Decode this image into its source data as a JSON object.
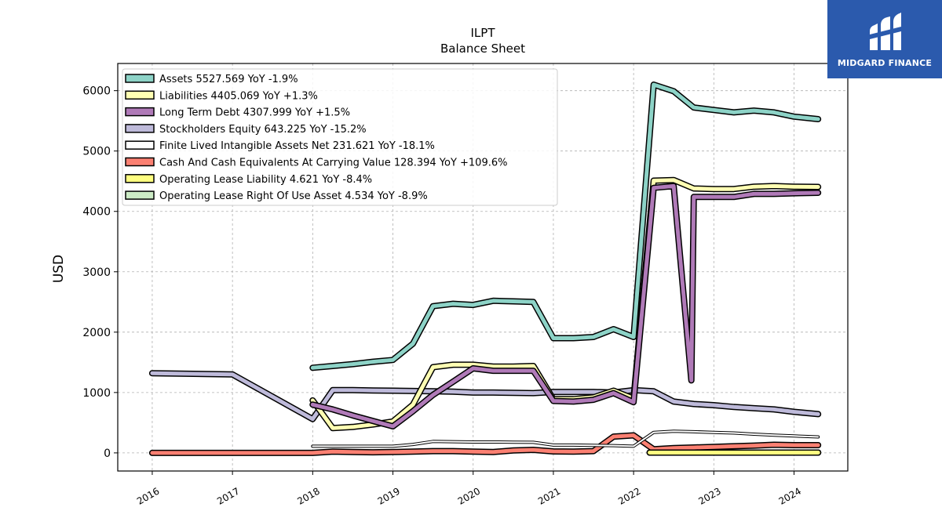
{
  "brand": {
    "name": "MIDGARD FINANCE"
  },
  "chart_data": {
    "type": "line",
    "title": "ILPT",
    "subtitle": "Balance  Sheet",
    "xlabel": "",
    "ylabel": "USD",
    "ylim": [
      -300,
      6450
    ],
    "xlim": [
      2015.57,
      2024.67
    ],
    "x_ticks": [
      2016,
      2017,
      2018,
      2019,
      2020,
      2021,
      2022,
      2023,
      2024
    ],
    "x_tick_labels": [
      "2016",
      "2017",
      "2018",
      "2019",
      "2020",
      "2021",
      "2022",
      "2023",
      "2024"
    ],
    "y_ticks": [
      0,
      1000,
      2000,
      3000,
      4000,
      5000,
      6000
    ],
    "y_tick_labels": [
      "0",
      "1000",
      "2000",
      "3000",
      "4000",
      "5000",
      "6000"
    ],
    "grid": true,
    "legend_position": "top-left",
    "series": [
      {
        "name": "Assets",
        "legend": "Assets  5527.569 YoY -1.9%",
        "color": "#8dd3c7",
        "x": [
          2018.0,
          2018.25,
          2018.5,
          2018.75,
          2019.0,
          2019.25,
          2019.5,
          2019.75,
          2020.0,
          2020.25,
          2020.5,
          2020.75,
          2021.0,
          2021.25,
          2021.5,
          2021.75,
          2022.0,
          2022.25,
          2022.5,
          2022.75,
          2023.0,
          2023.25,
          2023.5,
          2023.75,
          2024.0,
          2024.3
        ],
        "y": [
          1410,
          1440,
          1470,
          1510,
          1540,
          1810,
          2430,
          2470,
          2450,
          2520,
          2510,
          2500,
          1900,
          1900,
          1920,
          2050,
          1920,
          6100,
          5990,
          5720,
          5680,
          5640,
          5670,
          5640,
          5570,
          5528
        ]
      },
      {
        "name": "Liabilities",
        "legend": "Liabilities  4405.069 YoY +1.3%",
        "color": "#ffffb3",
        "x": [
          2018.0,
          2018.25,
          2018.5,
          2018.75,
          2019.0,
          2019.25,
          2019.5,
          2019.75,
          2020.0,
          2020.25,
          2020.5,
          2020.75,
          2021.0,
          2021.25,
          2021.5,
          2021.75,
          2022.0,
          2022.25,
          2022.5,
          2022.75,
          2023.0,
          2023.25,
          2023.5,
          2023.75,
          2024.0,
          2024.3
        ],
        "y": [
          870,
          410,
          430,
          470,
          520,
          800,
          1420,
          1460,
          1460,
          1430,
          1430,
          1440,
          890,
          890,
          920,
          1030,
          900,
          4510,
          4520,
          4380,
          4370,
          4370,
          4410,
          4420,
          4410,
          4405
        ]
      },
      {
        "name": "Long Term Debt",
        "legend": "Long Term Debt  4307.999 YoY +1.5%",
        "color": "#bebada",
        "stroke_override": "#b07ab8",
        "x": [
          2018.0,
          2018.25,
          2018.5,
          2018.75,
          2019.0,
          2019.25,
          2019.5,
          2019.75,
          2020.0,
          2020.25,
          2020.5,
          2020.75,
          2021.0,
          2021.25,
          2021.5,
          2021.75,
          2022.0,
          2022.25,
          2022.5,
          2022.72,
          2022.75,
          2023.0,
          2023.25,
          2023.5,
          2023.75,
          2024.0,
          2024.3
        ],
        "y": [
          800,
          720,
          620,
          530,
          440,
          690,
          960,
          1180,
          1400,
          1360,
          1360,
          1360,
          860,
          850,
          880,
          990,
          840,
          4390,
          4420,
          1200,
          4240,
          4240,
          4240,
          4290,
          4290,
          4300,
          4308
        ]
      },
      {
        "name": "Stockholders Equity",
        "legend": "Stockholders Equity  643.225 YoY -15.2%",
        "color": "#bebada",
        "x": [
          2016.0,
          2017.0,
          2018.0,
          2018.25,
          2018.5,
          2018.75,
          2019.0,
          2019.25,
          2019.5,
          2019.75,
          2020.0,
          2020.25,
          2020.5,
          2020.75,
          2021.0,
          2021.25,
          2021.5,
          2021.75,
          2022.0,
          2022.25,
          2022.5,
          2022.75,
          2023.0,
          2023.25,
          2023.5,
          2023.75,
          2024.0,
          2024.3
        ],
        "y": [
          1320,
          1300,
          560,
          1040,
          1040,
          1035,
          1030,
          1025,
          1020,
          1015,
          1000,
          1000,
          995,
          990,
          1010,
          1010,
          1010,
          1000,
          1040,
          1020,
          850,
          810,
          790,
          760,
          740,
          720,
          680,
          643
        ]
      },
      {
        "name": "Finite Lived Intangible Assets Net",
        "legend": "Finite Lived Intangible Assets Net  231.621 YoY -18.1%",
        "color": "#ffffff",
        "x": [
          2018.0,
          2018.25,
          2018.5,
          2018.75,
          2019.0,
          2019.25,
          2019.5,
          2019.75,
          2020.0,
          2020.25,
          2020.5,
          2020.75,
          2021.0,
          2021.25,
          2021.5,
          2021.75,
          2022.0,
          2022.25,
          2022.5,
          2022.75,
          2023.0,
          2023.25,
          2023.5,
          2023.75,
          2024.0,
          2024.3
        ],
        "y": [
          110,
          110,
          110,
          110,
          110,
          140,
          190,
          185,
          180,
          180,
          178,
          175,
          130,
          130,
          125,
          120,
          110,
          340,
          360,
          350,
          340,
          330,
          310,
          295,
          280,
          265
        ]
      },
      {
        "name": "Cash And Cash Equivalents At Carrying Value",
        "legend": "Cash And Cash Equivalents At Carrying Value  128.394 YoY +109.6%",
        "color": "#fb8072",
        "x": [
          2016.0,
          2017.0,
          2018.0,
          2018.25,
          2018.5,
          2018.75,
          2019.0,
          2019.25,
          2019.5,
          2019.75,
          2020.0,
          2020.25,
          2020.5,
          2020.75,
          2021.0,
          2021.25,
          2021.5,
          2021.75,
          2022.0,
          2022.25,
          2022.5,
          2022.75,
          2023.0,
          2023.25,
          2023.5,
          2023.75,
          2024.0,
          2024.3
        ],
        "y": [
          0,
          0,
          0,
          20,
          15,
          10,
          15,
          20,
          30,
          30,
          20,
          15,
          40,
          50,
          25,
          20,
          30,
          270,
          290,
          60,
          80,
          90,
          100,
          110,
          120,
          135,
          128,
          128
        ]
      },
      {
        "name": "Operating Lease Liability",
        "legend": "Operating Lease Liability  4.621 YoY -8.4%",
        "color": "#ffff80",
        "x": [
          2022.2,
          2022.5,
          2022.75,
          2023.0,
          2023.25,
          2023.5,
          2023.75,
          2024.0,
          2024.3
        ],
        "y": [
          5,
          5,
          5,
          5,
          5,
          5,
          5,
          5,
          5
        ]
      },
      {
        "name": "Operating Lease Right Of Use Asset",
        "legend": "Operating Lease Right Of Use Asset  4.534 YoY -8.9%",
        "color": "#ccebc5",
        "x": [
          2022.2,
          2022.5,
          2022.75,
          2023.0,
          2023.25,
          2023.5,
          2023.75,
          2024.0,
          2024.3
        ],
        "y": [
          5,
          5,
          5,
          5,
          5,
          5,
          5,
          5,
          5
        ]
      }
    ]
  }
}
